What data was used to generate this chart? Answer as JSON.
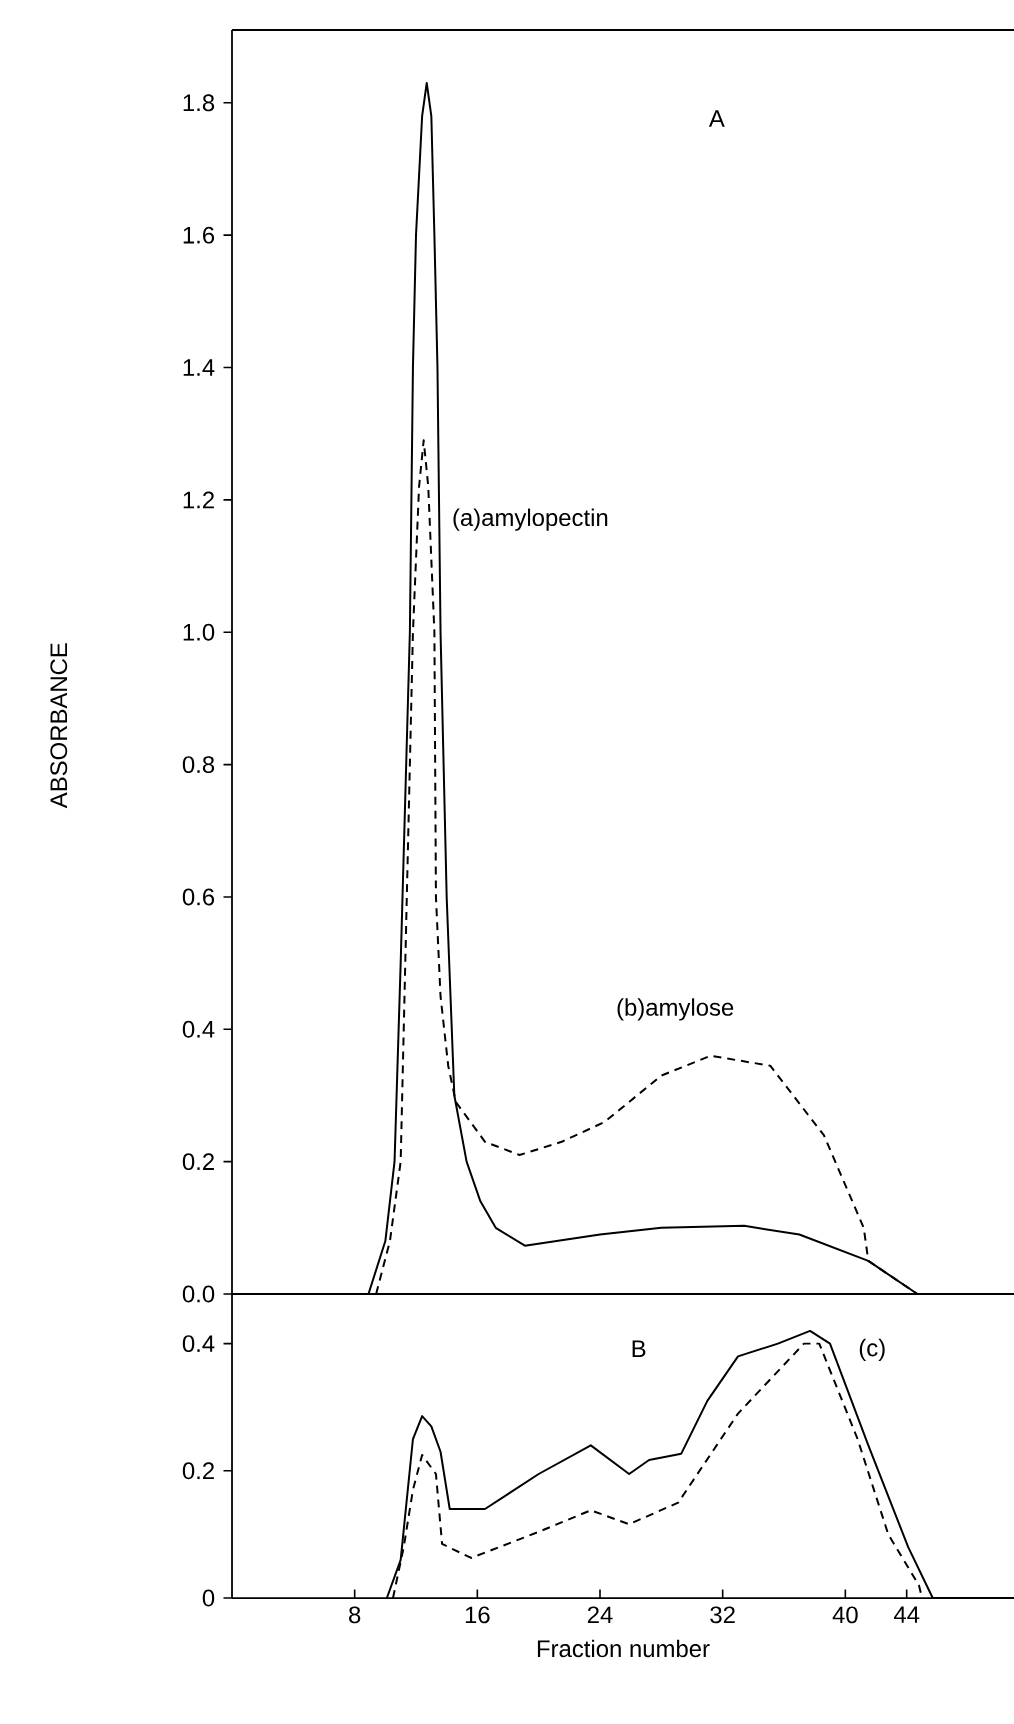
{
  "chart_data": [
    {
      "type": "line",
      "title": "A",
      "ylabel": "ABSORBANCE",
      "xlim": [
        0,
        51
      ],
      "ylim": [
        0,
        1.91
      ],
      "yticks": [
        {
          "value": 0,
          "label": "0.0"
        },
        0.2,
        0.4,
        0.6,
        0.8,
        {
          "value": 1,
          "label": "1.0"
        },
        1.2,
        1.4,
        1.6,
        1.8
      ],
      "tick_labels": "y",
      "grid": false,
      "series": [
        {
          "name": "(a)amylopectin",
          "color": "#000000",
          "line_style": "solid",
          "x": [
            8.9,
            10.0,
            10.6,
            11.0,
            11.6,
            11.8,
            12.0,
            12.4,
            12.7,
            13.0,
            13.2,
            13.4,
            13.6,
            14.0,
            14.5,
            15.3,
            16.2,
            17.2,
            19.1,
            24,
            28,
            33.4,
            37,
            41.5,
            44.7,
            51
          ],
          "values": [
            0,
            0.08,
            0.2,
            0.5,
            1.0,
            1.4,
            1.6,
            1.78,
            1.83,
            1.78,
            1.6,
            1.4,
            1.0,
            0.6,
            0.3,
            0.2,
            0.14,
            0.1,
            0.073,
            0.09,
            0.1,
            0.103,
            0.09,
            0.05,
            0,
            0
          ]
        },
        {
          "name": "(b)amylose",
          "color": "#000000",
          "line_style": "dashed",
          "x": [
            9.4,
            10.3,
            11.0,
            11.4,
            11.8,
            12.2,
            12.5,
            12.8,
            13.2,
            13.3,
            13.6,
            14.1,
            14.6,
            16.5,
            18.75,
            21.5,
            24.3,
            28,
            31.2,
            35.1,
            38.6,
            41.2,
            41.5,
            44.7
          ],
          "values": [
            0,
            0.08,
            0.2,
            0.6,
            1.0,
            1.22,
            1.29,
            1.22,
            1.0,
            0.6,
            0.45,
            0.345,
            0.29,
            0.23,
            0.21,
            0.23,
            0.26,
            0.33,
            0.36,
            0.345,
            0.24,
            0.1,
            0.05,
            0
          ]
        }
      ]
    },
    {
      "type": "line",
      "title": "B",
      "xlabel": "Fraction number",
      "xlim": [
        0,
        51
      ],
      "ylim": [
        0,
        0.478
      ],
      "xticks": [
        8,
        16,
        24,
        32,
        40,
        44
      ],
      "yticks": [
        0,
        0.2,
        0.4
      ],
      "grid": false,
      "series": [
        {
          "name": "(c)",
          "color": "#000000",
          "line_style": "solid",
          "x": [
            10.1,
            11.0,
            11.8,
            12.4,
            13.0,
            13.6,
            14.2,
            16.5,
            20,
            23.4,
            25.9,
            27.2,
            29.3,
            31,
            33,
            35.6,
            37.7,
            39,
            41.5,
            44.1,
            45.7,
            51
          ],
          "values": [
            0,
            0.06,
            0.25,
            0.286,
            0.27,
            0.23,
            0.14,
            0.14,
            0.195,
            0.24,
            0.195,
            0.217,
            0.227,
            0.31,
            0.38,
            0.4,
            0.42,
            0.4,
            0.24,
            0.08,
            0,
            0
          ]
        },
        {
          "color": "#000000",
          "line_style": "dashed",
          "x": [
            10.5,
            11.2,
            11.8,
            12.4,
            13.3,
            13.7,
            15.6,
            20,
            23.4,
            25.9,
            29.1,
            33,
            37.3,
            38.3,
            40.8,
            42.8,
            44.8,
            45
          ],
          "values": [
            0,
            0.08,
            0.17,
            0.225,
            0.195,
            0.085,
            0.063,
            0.104,
            0.138,
            0.116,
            0.15,
            0.29,
            0.4,
            0.4,
            0.25,
            0.1,
            0.02,
            0
          ]
        }
      ]
    }
  ]
}
